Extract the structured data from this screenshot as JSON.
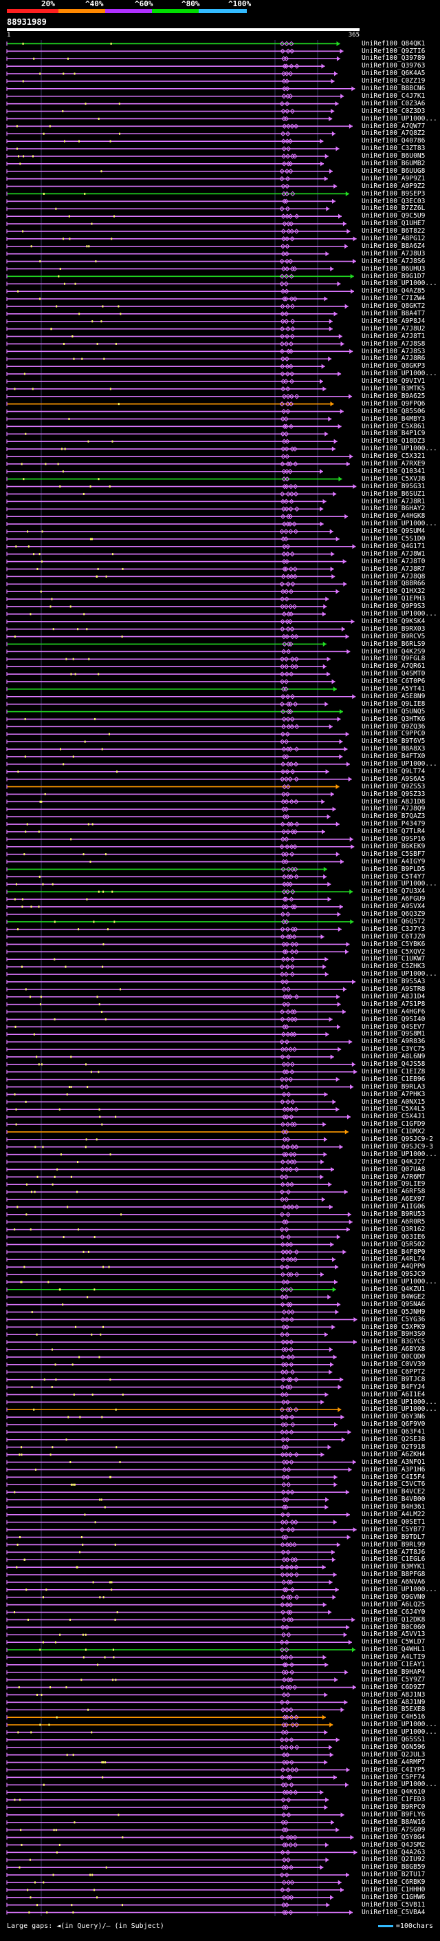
{
  "legend": {
    "labels": [
      "20%",
      "^40%",
      "^60%",
      "^80%",
      "^100%"
    ],
    "colors": [
      "#ff2020",
      "#ff8800",
      "#b030ff",
      "#00dd00",
      "#33bbff"
    ]
  },
  "query": {
    "id": "88931989",
    "start": "1",
    "end": "365"
  },
  "footer": {
    "gaps_text": "Large gaps: ◄(in Query)/– (in Subject)",
    "scale_text": "=100chars"
  },
  "colors": {
    "magenta": "#dd77ff",
    "green": "#22dd22",
    "orange": "#ff9900",
    "yellow": "#ffff66",
    "cyan": "#33bbff",
    "grid": "#3a3a6a"
  },
  "hits": [
    {
      "label": "UniRef100_Q84QK1",
      "color": "green"
    },
    {
      "label": "UniRef100_Q9ZTI6",
      "color": "magenta"
    },
    {
      "label": "UniRef100_Q39789",
      "color": "magenta"
    },
    {
      "label": "UniRef100_Q39763",
      "color": "magenta"
    },
    {
      "label": "UniRef100_Q6K4A5",
      "color": "magenta"
    },
    {
      "label": "UniRef100_C0ZZ19",
      "color": "magenta"
    },
    {
      "label": "UniRef100_B8BCN6",
      "color": "magenta"
    },
    {
      "label": "UniRef100_C4J7K1",
      "color": "magenta"
    },
    {
      "label": "UniRef100_C0Z3A6",
      "color": "magenta"
    },
    {
      "label": "UniRef100_C0Z3D3",
      "color": "magenta"
    },
    {
      "label": "UniRef100_UP1000...",
      "color": "magenta"
    },
    {
      "label": "UniRef100_A7QW77",
      "color": "magenta"
    },
    {
      "label": "UniRef100_A7Q8Z2",
      "color": "magenta"
    },
    {
      "label": "UniRef100_Q40786",
      "color": "magenta"
    },
    {
      "label": "UniRef100_C3ZT83",
      "color": "magenta"
    },
    {
      "label": "UniRef100_B6U0N5",
      "color": "magenta"
    },
    {
      "label": "UniRef100_B6UMB2",
      "color": "magenta"
    },
    {
      "label": "UniRef100_B6UUG8",
      "color": "magenta"
    },
    {
      "label": "UniRef100_A9P9Z1",
      "color": "magenta"
    },
    {
      "label": "UniRef100_A9P9Z2",
      "color": "magenta"
    },
    {
      "label": "UniRef100_B9SEP3",
      "color": "green"
    },
    {
      "label": "UniRef100_Q3EC03",
      "color": "magenta"
    },
    {
      "label": "UniRef100_B7ZZ6L",
      "color": "magenta"
    },
    {
      "label": "UniRef100_Q9C5U9",
      "color": "magenta"
    },
    {
      "label": "UniRef100_Q1UHE7",
      "color": "magenta"
    },
    {
      "label": "UniRef100_B6T822",
      "color": "magenta"
    },
    {
      "label": "UniRef100_A8PG12",
      "color": "magenta"
    },
    {
      "label": "UniRef100_B8A6Z4",
      "color": "magenta"
    },
    {
      "label": "UniRef100_A7J8U3",
      "color": "magenta"
    },
    {
      "label": "UniRef100_A7J8S6",
      "color": "magenta"
    },
    {
      "label": "UniRef100_B6UHU3",
      "color": "magenta"
    },
    {
      "label": "UniRef100_B9G1D7",
      "color": "green"
    },
    {
      "label": "UniRef100_UP1000...",
      "color": "magenta"
    },
    {
      "label": "UniRef100_Q4AZ85",
      "color": "magenta"
    },
    {
      "label": "UniRef100_C7IZW4",
      "color": "magenta"
    },
    {
      "label": "UniRef100_Q8GKT2",
      "color": "magenta"
    },
    {
      "label": "UniRef100_B8A4T7",
      "color": "magenta"
    },
    {
      "label": "UniRef100_A9P8J4",
      "color": "magenta"
    },
    {
      "label": "UniRef100_A7J8U2",
      "color": "magenta"
    },
    {
      "label": "UniRef100_A7J8T1",
      "color": "magenta"
    },
    {
      "label": "UniRef100_A7J8S8",
      "color": "magenta"
    },
    {
      "label": "UniRef100_A7J8S3",
      "color": "magenta"
    },
    {
      "label": "UniRef100_A7J8R6",
      "color": "magenta"
    },
    {
      "label": "UniRef100_Q8GKP3",
      "color": "magenta"
    },
    {
      "label": "UniRef100_UP1000...",
      "color": "magenta"
    },
    {
      "label": "UniRef100_Q9VIV1",
      "color": "magenta"
    },
    {
      "label": "UniRef100_B3MTK5",
      "color": "magenta"
    },
    {
      "label": "UniRef100_B9A625",
      "color": "magenta"
    },
    {
      "label": "UniRef100_Q9FPQ6",
      "color": "orange"
    },
    {
      "label": "UniRef100_Q85S06",
      "color": "magenta"
    },
    {
      "label": "UniRef100_B4MBY3",
      "color": "magenta"
    },
    {
      "label": "UniRef100_C5X861",
      "color": "magenta"
    },
    {
      "label": "UniRef100_B4P1C9",
      "color": "magenta"
    },
    {
      "label": "UniRef100_Q18DZ3",
      "color": "magenta"
    },
    {
      "label": "UniRef100_UP1000...",
      "color": "magenta"
    },
    {
      "label": "UniRef100_C5X321",
      "color": "magenta"
    },
    {
      "label": "UniRef100_A7RXE9",
      "color": "magenta"
    },
    {
      "label": "UniRef100_Q10341",
      "color": "magenta"
    },
    {
      "label": "UniRef100_C5XVJ8",
      "color": "green"
    },
    {
      "label": "UniRef100_B9SG31",
      "color": "magenta"
    },
    {
      "label": "UniRef100_B6SUZ1",
      "color": "magenta"
    },
    {
      "label": "UniRef100_A7J8R1",
      "color": "magenta"
    },
    {
      "label": "UniRef100_B6HAY2",
      "color": "magenta"
    },
    {
      "label": "UniRef100_A4HGK8",
      "color": "magenta"
    },
    {
      "label": "UniRef100_UP1000...",
      "color": "magenta"
    },
    {
      "label": "UniRef100_Q9SUM4",
      "color": "magenta"
    },
    {
      "label": "UniRef100_C5S1D0",
      "color": "magenta"
    },
    {
      "label": "UniRef100_Q4G171",
      "color": "magenta"
    },
    {
      "label": "UniRef100_A7J8W1",
      "color": "magenta"
    },
    {
      "label": "UniRef100_A7J8T0",
      "color": "magenta"
    },
    {
      "label": "UniRef100_A7J8R7",
      "color": "magenta"
    },
    {
      "label": "UniRef100_A7J8Q8",
      "color": "magenta"
    },
    {
      "label": "UniRef100_Q8BR66",
      "color": "magenta"
    },
    {
      "label": "UniRef100_Q1HX32",
      "color": "magenta"
    },
    {
      "label": "UniRef100_Q1EPH3",
      "color": "magenta"
    },
    {
      "label": "UniRef100_Q9P9S3",
      "color": "magenta"
    },
    {
      "label": "UniRef100_UP1000...",
      "color": "magenta"
    },
    {
      "label": "UniRef100_Q9KSK4",
      "color": "magenta"
    },
    {
      "label": "UniRef100_B9RX03",
      "color": "magenta"
    },
    {
      "label": "UniRef100_B9RCV5",
      "color": "magenta"
    },
    {
      "label": "UniRef100_B6RLS9",
      "color": "green"
    },
    {
      "label": "UniRef100_Q4K2S9",
      "color": "magenta"
    },
    {
      "label": "UniRef100_Q9FGL8",
      "color": "magenta"
    },
    {
      "label": "UniRef100_A7QR61",
      "color": "magenta"
    },
    {
      "label": "UniRef100_Q4SMT0",
      "color": "magenta"
    },
    {
      "label": "UniRef100_C6T0P6",
      "color": "magenta"
    },
    {
      "label": "UniRef100_A5YT41",
      "color": "green"
    },
    {
      "label": "UniRef100_A5E8N9",
      "color": "magenta"
    },
    {
      "label": "UniRef100_Q9LIE8",
      "color": "magenta"
    },
    {
      "label": "UniRef100_Q5UNQ5",
      "color": "green"
    },
    {
      "label": "UniRef100_Q3HTK6",
      "color": "magenta"
    },
    {
      "label": "UniRef100_Q9ZQ36",
      "color": "magenta"
    },
    {
      "label": "UniRef100_C9PPC0",
      "color": "magenta"
    },
    {
      "label": "UniRef100_B9T6V5",
      "color": "magenta"
    },
    {
      "label": "UniRef100_B8A8X3",
      "color": "magenta"
    },
    {
      "label": "UniRef100_B4FTX0",
      "color": "magenta"
    },
    {
      "label": "UniRef100_UP1000...",
      "color": "magenta"
    },
    {
      "label": "UniRef100_Q9LT74",
      "color": "magenta"
    },
    {
      "label": "UniRef100_A9S6A5",
      "color": "magenta"
    },
    {
      "label": "UniRef100_Q9ZS53",
      "color": "orange"
    },
    {
      "label": "UniRef100_Q9SZ33",
      "color": "magenta"
    },
    {
      "label": "UniRef100_A8J1D8",
      "color": "magenta"
    },
    {
      "label": "UniRef100_A7J8Q9",
      "color": "magenta"
    },
    {
      "label": "UniRef100_B7QAZ3",
      "color": "magenta"
    },
    {
      "label": "UniRef100_P43479",
      "color": "magenta"
    },
    {
      "label": "UniRef100_Q7TLR4",
      "color": "magenta"
    },
    {
      "label": "UniRef100_Q9SP16",
      "color": "magenta"
    },
    {
      "label": "UniRef100_B6KEK9",
      "color": "magenta"
    },
    {
      "label": "UniRef100_C5SBF7",
      "color": "magenta"
    },
    {
      "label": "UniRef100_A4IGY9",
      "color": "magenta"
    },
    {
      "label": "UniRef100_B9PLD5",
      "color": "green"
    },
    {
      "label": "UniRef100_C5T4Y7",
      "color": "magenta"
    },
    {
      "label": "UniRef100_UP1000...",
      "color": "magenta"
    },
    {
      "label": "UniRef100_Q7U3X4",
      "color": "green"
    },
    {
      "label": "UniRef100_A6FGU9",
      "color": "magenta"
    },
    {
      "label": "UniRef100_A9SVX4",
      "color": "magenta"
    },
    {
      "label": "UniRef100_Q6Q3Z9",
      "color": "magenta"
    },
    {
      "label": "UniRef100_Q6Q5T2",
      "color": "green"
    },
    {
      "label": "UniRef100_C3J7Y3",
      "color": "magenta"
    },
    {
      "label": "UniRef100_C6TJZ0",
      "color": "magenta"
    },
    {
      "label": "UniRef100_C5YBK6",
      "color": "magenta"
    },
    {
      "label": "UniRef100_C5XQV2",
      "color": "magenta"
    },
    {
      "label": "UniRef100_C1UKW7",
      "color": "magenta"
    },
    {
      "label": "UniRef100_C5ZHK3",
      "color": "magenta"
    },
    {
      "label": "UniRef100_UP1000...",
      "color": "magenta"
    },
    {
      "label": "UniRef100_B9S5A3",
      "color": "magenta"
    },
    {
      "label": "UniRef100_A9STR8",
      "color": "magenta"
    },
    {
      "label": "UniRef100_A8J1D4",
      "color": "magenta"
    },
    {
      "label": "UniRef100_A7S1P8",
      "color": "magenta"
    },
    {
      "label": "UniRef100_A4HGF6",
      "color": "magenta"
    },
    {
      "label": "UniRef100_Q9SI40",
      "color": "magenta"
    },
    {
      "label": "UniRef100_Q4SEV7",
      "color": "magenta"
    },
    {
      "label": "UniRef100_Q9S8M1",
      "color": "magenta"
    },
    {
      "label": "UniRef100_A9R836",
      "color": "magenta"
    },
    {
      "label": "UniRef100_C3YC75",
      "color": "magenta"
    },
    {
      "label": "UniRef100_A8L6N9",
      "color": "magenta"
    },
    {
      "label": "UniRef100_Q4JS58",
      "color": "magenta"
    },
    {
      "label": "UniRef100_C1EIZ8",
      "color": "magenta"
    },
    {
      "label": "UniRef100_C1EB96",
      "color": "magenta"
    },
    {
      "label": "UniRef100_B9RLA3",
      "color": "magenta"
    },
    {
      "label": "UniRef100_A7PHK3",
      "color": "magenta"
    },
    {
      "label": "UniRef100_A0NX15",
      "color": "magenta"
    },
    {
      "label": "UniRef100_C5X4L5",
      "color": "magenta"
    },
    {
      "label": "UniRef100_C5X4J1",
      "color": "magenta"
    },
    {
      "label": "UniRef100_C1GFD9",
      "color": "magenta"
    },
    {
      "label": "UniRef100_C1DMX2",
      "color": "orange"
    },
    {
      "label": "UniRef100_Q9SJC9-2",
      "color": "magenta"
    },
    {
      "label": "UniRef100_Q9SJC9-3",
      "color": "magenta"
    },
    {
      "label": "UniRef100_UP1000...",
      "color": "magenta"
    },
    {
      "label": "UniRef100_Q4KJ27",
      "color": "magenta"
    },
    {
      "label": "UniRef100_Q07UA8",
      "color": "magenta"
    },
    {
      "label": "UniRef100_A7R6M7",
      "color": "magenta"
    },
    {
      "label": "UniRef100_Q9LIE9",
      "color": "magenta"
    },
    {
      "label": "UniRef100_A6RF58",
      "color": "magenta"
    },
    {
      "label": "UniRef100_A6EX97",
      "color": "magenta"
    },
    {
      "label": "UniRef100_A1IG06",
      "color": "magenta"
    },
    {
      "label": "UniRef100_B9RU53",
      "color": "magenta"
    },
    {
      "label": "UniRef100_A6R0R5",
      "color": "magenta"
    },
    {
      "label": "UniRef100_Q3R162",
      "color": "magenta"
    },
    {
      "label": "UniRef100_Q63IE6",
      "color": "magenta"
    },
    {
      "label": "UniRef100_Q5R502",
      "color": "magenta"
    },
    {
      "label": "UniRef100_B4F8P0",
      "color": "magenta"
    },
    {
      "label": "UniRef100_A4RL74",
      "color": "magenta"
    },
    {
      "label": "UniRef100_A4QPP0",
      "color": "magenta"
    },
    {
      "label": "UniRef100_Q9SJC9",
      "color": "magenta"
    },
    {
      "label": "UniRef100_UP1000...",
      "color": "magenta"
    },
    {
      "label": "UniRef100_Q4KZU1",
      "color": "green"
    },
    {
      "label": "UniRef100_B4WGE2",
      "color": "magenta"
    },
    {
      "label": "UniRef100_Q9SNA6",
      "color": "magenta"
    },
    {
      "label": "UniRef100_Q5JNH9",
      "color": "magenta"
    },
    {
      "label": "UniRef100_C5YG36",
      "color": "magenta"
    },
    {
      "label": "UniRef100_C5XPK9",
      "color": "magenta"
    },
    {
      "label": "UniRef100_B9H3S0",
      "color": "magenta"
    },
    {
      "label": "UniRef100_B3GYC5",
      "color": "magenta"
    },
    {
      "label": "UniRef100_A6BYX8",
      "color": "magenta"
    },
    {
      "label": "UniRef100_Q0CQD0",
      "color": "magenta"
    },
    {
      "label": "UniRef100_C0VV39",
      "color": "magenta"
    },
    {
      "label": "UniRef100_C6PPT2",
      "color": "magenta"
    },
    {
      "label": "UniRef100_B9TJC8",
      "color": "magenta"
    },
    {
      "label": "UniRef100_B4FYJ4",
      "color": "magenta"
    },
    {
      "label": "UniRef100_A6I1E4",
      "color": "magenta"
    },
    {
      "label": "UniRef100_UP1000...",
      "color": "magenta"
    },
    {
      "label": "UniRef100_UP1000...",
      "color": "orange"
    },
    {
      "label": "UniRef100_Q6Y3N6",
      "color": "magenta"
    },
    {
      "label": "UniRef100_Q6F9V0",
      "color": "magenta"
    },
    {
      "label": "UniRef100_Q63F41",
      "color": "magenta"
    },
    {
      "label": "UniRef100_Q2SEJ8",
      "color": "magenta"
    },
    {
      "label": "UniRef100_Q2T918",
      "color": "magenta"
    },
    {
      "label": "UniRef100_A6ZKH4",
      "color": "magenta"
    },
    {
      "label": "UniRef100_A3NFQ1",
      "color": "magenta"
    },
    {
      "label": "UniRef100_A3P1H6",
      "color": "magenta"
    },
    {
      "label": "UniRef100_C4I5F4",
      "color": "magenta"
    },
    {
      "label": "UniRef100_C5VCT6",
      "color": "magenta"
    },
    {
      "label": "UniRef100_B4VCE2",
      "color": "magenta"
    },
    {
      "label": "UniRef100_B4VB00",
      "color": "magenta"
    },
    {
      "label": "UniRef100_B4H361",
      "color": "magenta"
    },
    {
      "label": "UniRef100_A4LM22",
      "color": "magenta"
    },
    {
      "label": "UniRef100_Q0SET1",
      "color": "magenta"
    },
    {
      "label": "UniRef100_C5YB77",
      "color": "magenta"
    },
    {
      "label": "UniRef100_B9TDL7",
      "color": "magenta"
    },
    {
      "label": "UniRef100_B9RL99",
      "color": "magenta"
    },
    {
      "label": "UniRef100_A7T8J6",
      "color": "magenta"
    },
    {
      "label": "UniRef100_C1EGL6",
      "color": "magenta"
    },
    {
      "label": "UniRef100_B3MYK1",
      "color": "magenta"
    },
    {
      "label": "UniRef100_B8PFG8",
      "color": "magenta"
    },
    {
      "label": "UniRef100_A6NVA6",
      "color": "magenta"
    },
    {
      "label": "UniRef100_UP1000...",
      "color": "magenta"
    },
    {
      "label": "UniRef100_Q9GVN0",
      "color": "magenta"
    },
    {
      "label": "UniRef100_A6LQ25",
      "color": "magenta"
    },
    {
      "label": "UniRef100_C6J4Y0",
      "color": "magenta"
    },
    {
      "label": "UniRef100_Q12DK8",
      "color": "magenta"
    },
    {
      "label": "UniRef100_B0C060",
      "color": "magenta"
    },
    {
      "label": "UniRef100_A5VV13",
      "color": "magenta"
    },
    {
      "label": "UniRef100_C5WLD7",
      "color": "magenta"
    },
    {
      "label": "UniRef100_Q4WHL1",
      "color": "green"
    },
    {
      "label": "UniRef100_A4LTI9",
      "color": "magenta"
    },
    {
      "label": "UniRef100_C1EAY1",
      "color": "magenta"
    },
    {
      "label": "UniRef100_B9HAP4",
      "color": "magenta"
    },
    {
      "label": "UniRef100_C5Y9Z7",
      "color": "magenta"
    },
    {
      "label": "UniRef100_C6D9Z7",
      "color": "magenta"
    },
    {
      "label": "UniRef100_A8J1N3",
      "color": "magenta"
    },
    {
      "label": "UniRef100_A8J1N9",
      "color": "magenta"
    },
    {
      "label": "UniRef100_B5EXE8",
      "color": "magenta"
    },
    {
      "label": "UniRef100_C4H516",
      "color": "orange"
    },
    {
      "label": "UniRef100_UP1000...",
      "color": "orange"
    },
    {
      "label": "UniRef100_UP1000...",
      "color": "magenta"
    },
    {
      "label": "UniRef100_Q65SS1",
      "color": "magenta"
    },
    {
      "label": "UniRef100_Q6N596",
      "color": "magenta"
    },
    {
      "label": "UniRef100_Q2JUL3",
      "color": "magenta"
    },
    {
      "label": "UniRef100_A4RMP7",
      "color": "magenta"
    },
    {
      "label": "UniRef100_C4IYP5",
      "color": "magenta"
    },
    {
      "label": "UniRef100_C5PF74",
      "color": "magenta"
    },
    {
      "label": "UniRef100_UP1000...",
      "color": "magenta"
    },
    {
      "label": "UniRef100_Q4K610",
      "color": "magenta"
    },
    {
      "label": "UniRef100_C1FED3",
      "color": "magenta"
    },
    {
      "label": "UniRef100_B9RPC0",
      "color": "magenta"
    },
    {
      "label": "UniRef100_B9FLY6",
      "color": "magenta"
    },
    {
      "label": "UniRef100_B8AW16",
      "color": "magenta"
    },
    {
      "label": "UniRef100_A7SG09",
      "color": "magenta"
    },
    {
      "label": "UniRef100_Q5Y8G4",
      "color": "magenta"
    },
    {
      "label": "UniRef100_Q4JSM2",
      "color": "magenta"
    },
    {
      "label": "UniRef100_Q4A263",
      "color": "magenta"
    },
    {
      "label": "UniRef100_Q2IU92",
      "color": "magenta"
    },
    {
      "label": "UniRef100_B8GB59",
      "color": "magenta"
    },
    {
      "label": "UniRef100_B2TU17",
      "color": "magenta"
    },
    {
      "label": "UniRef100_C6RBK9",
      "color": "magenta"
    },
    {
      "label": "UniRef100_C1HHH0",
      "color": "magenta"
    },
    {
      "label": "UniRef100_C1GHW6",
      "color": "magenta"
    },
    {
      "label": "UniRef100_C5VB11",
      "color": "magenta"
    },
    {
      "label": "UniRef100_C5VBA4",
      "color": "magenta"
    }
  ]
}
